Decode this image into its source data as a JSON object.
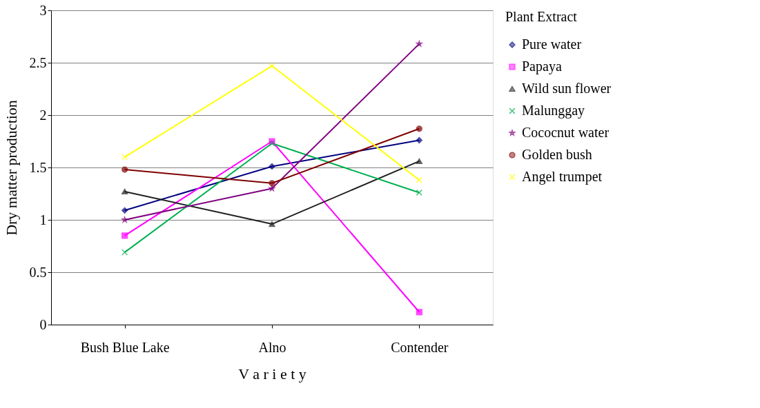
{
  "chart_data": {
    "type": "line",
    "xlabel": "V a r i e t y",
    "ylabel": "Dry matter production",
    "legend_title": "Plant Extract",
    "categories": [
      "Bush Blue Lake",
      "Alno",
      "Contender"
    ],
    "series": [
      {
        "name": "Pure water",
        "color": "#000080",
        "marker": "diamond",
        "values": [
          1.09,
          1.51,
          1.76
        ]
      },
      {
        "name": "Papaya",
        "color": "#ff00ff",
        "marker": "square",
        "values": [
          0.85,
          1.75,
          0.12
        ]
      },
      {
        "name": "Wild sun flower",
        "color": "#1f1f1f",
        "marker": "triangle",
        "values": [
          1.27,
          0.96,
          1.56
        ]
      },
      {
        "name": "Malunggay",
        "color": "#00b050",
        "marker": "cross",
        "values": [
          0.69,
          1.73,
          1.26
        ]
      },
      {
        "name": "Cococnut water",
        "color": "#800080",
        "marker": "star",
        "values": [
          1.0,
          1.3,
          2.68
        ]
      },
      {
        "name": "Golden bush",
        "color": "#800000",
        "marker": "circle",
        "values": [
          1.48,
          1.35,
          1.87
        ]
      },
      {
        "name": "Angel trumpet",
        "color": "#ffff00",
        "marker": "cross",
        "values": [
          1.6,
          2.47,
          1.38
        ]
      }
    ],
    "ylim": [
      0,
      3
    ],
    "yticks": [
      0,
      0.5,
      1,
      1.5,
      2,
      2.5,
      3
    ],
    "grid": "y",
    "legend": "right"
  }
}
